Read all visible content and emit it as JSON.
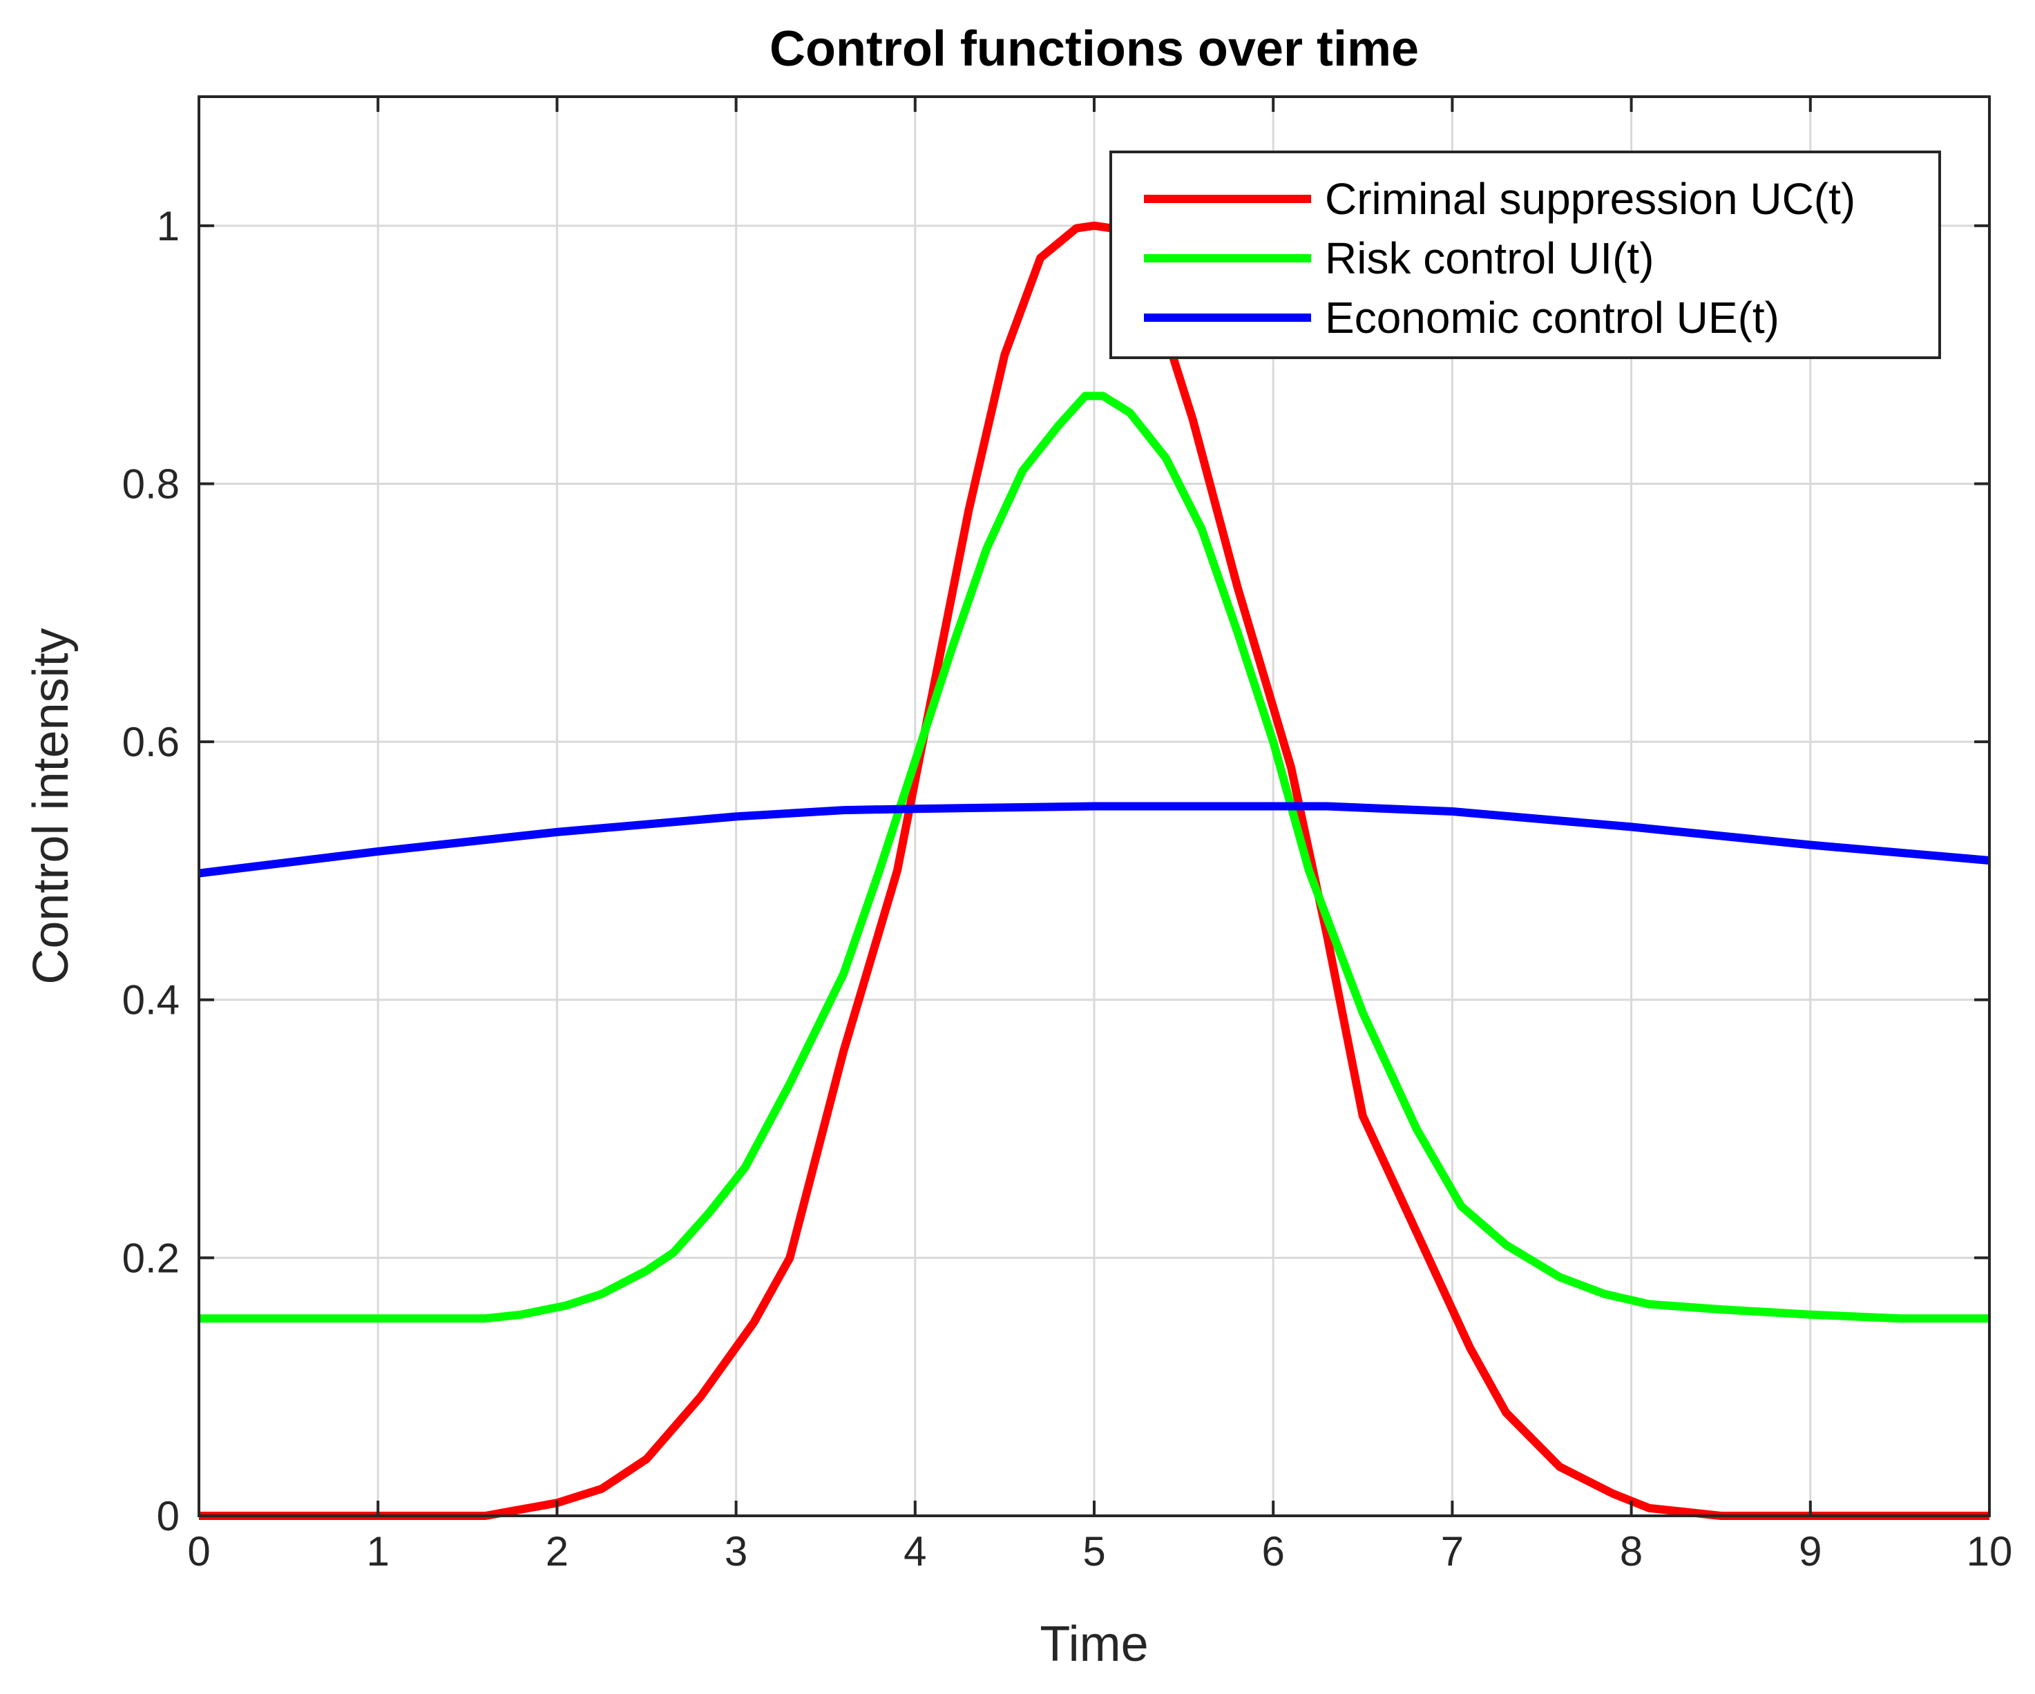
{
  "chart_data": {
    "type": "line",
    "title": "Control functions over time",
    "xlabel": "Time",
    "ylabel": "Control intensity",
    "xlim": [
      0,
      10
    ],
    "ylim": [
      0,
      1.1
    ],
    "xticks": [
      "0",
      "1",
      "2",
      "3",
      "4",
      "5",
      "6",
      "7",
      "8",
      "9",
      "10"
    ],
    "yticks": [
      "0",
      "0.2",
      "0.4",
      "0.6",
      "0.8",
      "1"
    ],
    "xtick_values": [
      0,
      1,
      2,
      3,
      4,
      5,
      6,
      7,
      8,
      9,
      10
    ],
    "ytick_values": [
      0,
      0.2,
      0.4,
      0.6,
      0.8,
      1.0
    ],
    "grid": true,
    "legend_position": "top-right",
    "series": [
      {
        "name": "Criminal suppression UC(t)",
        "color": "#ff0000",
        "x": [
          0,
          0.4,
          0.8,
          1.2,
          1.6,
          2.0,
          2.25,
          2.5,
          2.8,
          3.1,
          3.3,
          3.6,
          3.9,
          4.1,
          4.3,
          4.5,
          4.7,
          4.9,
          5.0,
          5.1,
          5.3,
          5.55,
          5.8,
          6.1,
          6.3,
          6.5,
          6.8,
          7.1,
          7.3,
          7.6,
          7.9,
          8.1,
          8.5,
          9.0,
          9.5,
          10
        ],
        "y": [
          0,
          0,
          0,
          0,
          0,
          0.01,
          0.021,
          0.044,
          0.092,
          0.15,
          0.2,
          0.36,
          0.5,
          0.64,
          0.78,
          0.9,
          0.975,
          0.998,
          1.0,
          0.998,
          0.96,
          0.85,
          0.72,
          0.58,
          0.45,
          0.31,
          0.22,
          0.13,
          0.08,
          0.038,
          0.017,
          0.006,
          0,
          0,
          0,
          0
        ]
      },
      {
        "name": "Risk control UI(t)",
        "color": "#00ff00",
        "x": [
          0,
          0.5,
          1.0,
          1.6,
          1.8,
          2.05,
          2.25,
          2.5,
          2.65,
          2.85,
          3.05,
          3.3,
          3.6,
          3.8,
          4.0,
          4.2,
          4.4,
          4.6,
          4.8,
          4.95,
          5.05,
          5.2,
          5.4,
          5.6,
          5.8,
          6.0,
          6.2,
          6.5,
          6.8,
          7.05,
          7.3,
          7.6,
          7.85,
          8.1,
          8.5,
          9.0,
          9.5,
          10
        ],
        "y": [
          0.153,
          0.153,
          0.153,
          0.153,
          0.156,
          0.163,
          0.172,
          0.19,
          0.204,
          0.235,
          0.27,
          0.335,
          0.42,
          0.5,
          0.585,
          0.67,
          0.75,
          0.81,
          0.845,
          0.868,
          0.868,
          0.855,
          0.82,
          0.765,
          0.685,
          0.6,
          0.5,
          0.39,
          0.3,
          0.24,
          0.21,
          0.185,
          0.172,
          0.164,
          0.16,
          0.156,
          0.153,
          0.153
        ]
      },
      {
        "name": "Economic control UE(t)",
        "color": "#0000ff",
        "x": [
          0,
          1,
          2,
          3,
          3.6,
          4,
          5,
          6,
          6.3,
          7,
          8,
          9,
          10
        ],
        "y": [
          0.498,
          0.515,
          0.53,
          0.542,
          0.547,
          0.548,
          0.55,
          0.55,
          0.55,
          0.546,
          0.534,
          0.52,
          0.508
        ]
      }
    ]
  }
}
